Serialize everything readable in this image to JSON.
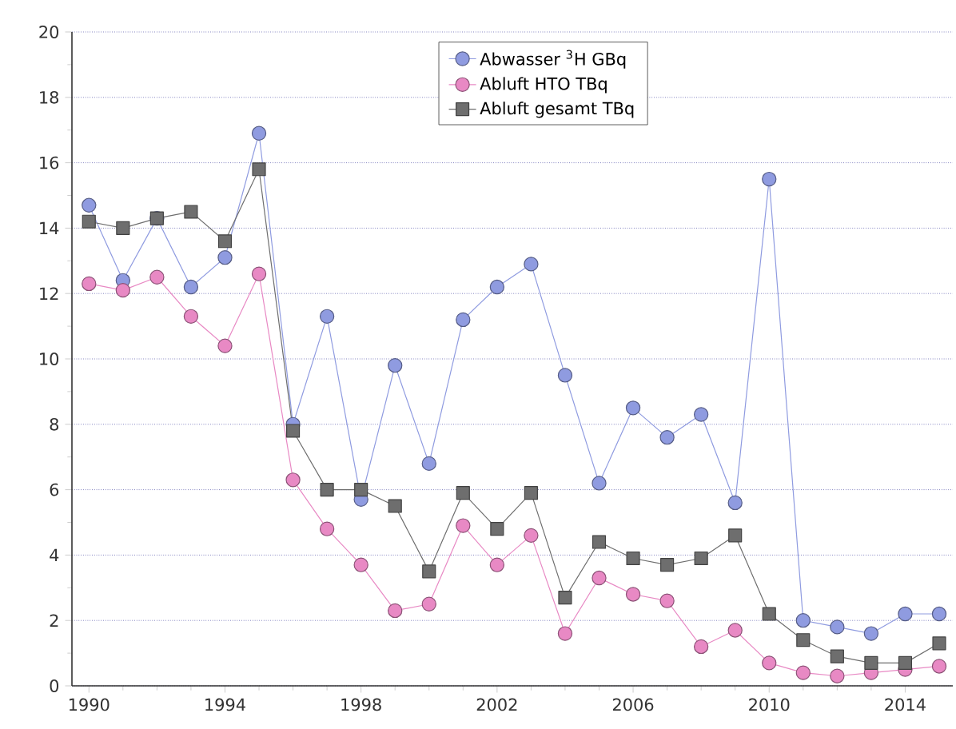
{
  "chart_data": {
    "type": "line",
    "x": [
      1990,
      1991,
      1992,
      1993,
      1994,
      1995,
      1996,
      1997,
      1998,
      1999,
      2000,
      2001,
      2002,
      2003,
      2004,
      2005,
      2006,
      2007,
      2008,
      2009,
      2010,
      2011,
      2012,
      2013,
      2014,
      2015
    ],
    "series": [
      {
        "name": "Abwasser $^{3}$H GBq",
        "color": "#8f9be0",
        "marker": "circle",
        "values": [
          14.7,
          12.4,
          14.3,
          12.2,
          13.1,
          16.9,
          8.0,
          11.3,
          5.7,
          9.8,
          6.8,
          11.2,
          12.2,
          12.9,
          9.5,
          6.2,
          8.5,
          7.6,
          8.3,
          5.6,
          15.5,
          2.0,
          1.8,
          1.6,
          2.2,
          2.2
        ]
      },
      {
        "name": "Abluft HTO TBq",
        "color": "#e889c4",
        "marker": "circle",
        "values": [
          12.3,
          12.1,
          12.5,
          11.3,
          10.4,
          12.6,
          6.3,
          4.8,
          3.7,
          2.3,
          2.5,
          4.9,
          3.7,
          4.6,
          1.6,
          3.3,
          2.8,
          2.6,
          1.2,
          1.7,
          0.7,
          0.4,
          0.3,
          0.4,
          0.5,
          0.6
        ]
      },
      {
        "name": "Abluft gesamt TBq",
        "color": "#6e6e6e",
        "marker": "square",
        "values": [
          14.2,
          14.0,
          14.3,
          14.5,
          13.6,
          15.8,
          7.8,
          6.0,
          6.0,
          5.5,
          3.5,
          5.9,
          4.8,
          5.9,
          2.7,
          4.4,
          3.9,
          3.7,
          3.9,
          4.6,
          2.2,
          1.4,
          0.9,
          0.7,
          0.7,
          1.3
        ]
      }
    ],
    "xlim": [
      1989.5,
      2015.4
    ],
    "xticks": [
      1990,
      1994,
      1998,
      2002,
      2006,
      2010,
      2014
    ],
    "ylim": [
      0,
      20
    ],
    "yticks": [
      0,
      2,
      4,
      6,
      8,
      10,
      12,
      14,
      16,
      18,
      20
    ],
    "grid": "y",
    "legend": "top",
    "line_style": "solid"
  }
}
